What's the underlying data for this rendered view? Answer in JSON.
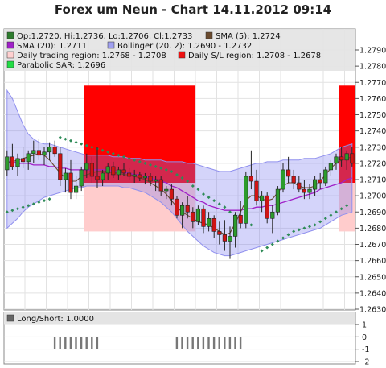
{
  "chart_data": {
    "type": "line",
    "title": "Forex um Neun - Chart 14.11.2012 09:14",
    "legend": {
      "ohlc": "Op:1.2720, Hi:1.2736, Lo:1.2706, Cl:1.2733",
      "sma5": "SMA (5): 1.2724",
      "sma20": "SMA (20): 1.2711",
      "bollinger": "Bollinger (20, 2): 1.2690 - 1.2732",
      "trading_region": "Daily trading region: 1.2768 - 1.2708",
      "sl_region": "Daily S/L region: 1.2708 - 1.2678",
      "sar": "Parabolic SAR: 1.2696"
    },
    "ylim": [
      1.263,
      1.279
    ],
    "yticks": [
      "1.2630",
      "1.2640",
      "1.2650",
      "1.2660",
      "1.2670",
      "1.2680",
      "1.2690",
      "1.2700",
      "1.2710",
      "1.2720",
      "1.2730",
      "1.2740",
      "1.2750",
      "1.2760",
      "1.2770",
      "1.2780",
      "1.2790"
    ],
    "candles": [
      [
        1.2716,
        1.2728,
        1.2712,
        1.2724
      ],
      [
        1.2724,
        1.2732,
        1.2716,
        1.2718
      ],
      [
        1.2718,
        1.2726,
        1.2712,
        1.2723
      ],
      [
        1.2723,
        1.273,
        1.2717,
        1.2721
      ],
      [
        1.2721,
        1.2728,
        1.2716,
        1.2726
      ],
      [
        1.2726,
        1.2734,
        1.272,
        1.2728
      ],
      [
        1.2728,
        1.2735,
        1.2722,
        1.2725
      ],
      [
        1.2725,
        1.273,
        1.2719,
        1.2727
      ],
      [
        1.2727,
        1.2733,
        1.2722,
        1.273
      ],
      [
        1.273,
        1.2734,
        1.2724,
        1.2726
      ],
      [
        1.2726,
        1.273,
        1.2706,
        1.271
      ],
      [
        1.271,
        1.2717,
        1.2702,
        1.2714
      ],
      [
        1.2714,
        1.2722,
        1.2698,
        1.2702
      ],
      [
        1.2702,
        1.2712,
        1.2698,
        1.2706
      ],
      [
        1.2706,
        1.2718,
        1.2703,
        1.2716
      ],
      [
        1.2716,
        1.2726,
        1.2711,
        1.272
      ],
      [
        1.272,
        1.2724,
        1.2708,
        1.2712
      ],
      [
        1.2712,
        1.273,
        1.2705,
        1.271
      ],
      [
        1.271,
        1.2716,
        1.2706,
        1.2714
      ],
      [
        1.2714,
        1.272,
        1.271,
        1.2718
      ],
      [
        1.2718,
        1.2721,
        1.2711,
        1.2713
      ],
      [
        1.2713,
        1.2718,
        1.271,
        1.2716
      ],
      [
        1.2716,
        1.272,
        1.2712,
        1.2714
      ],
      [
        1.2714,
        1.2717,
        1.271,
        1.2712
      ],
      [
        1.2712,
        1.2716,
        1.2708,
        1.2713
      ],
      [
        1.2713,
        1.2715,
        1.2709,
        1.2711
      ],
      [
        1.2711,
        1.2714,
        1.2707,
        1.2712
      ],
      [
        1.2712,
        1.2714,
        1.2706,
        1.2709
      ],
      [
        1.2709,
        1.2712,
        1.2703,
        1.271
      ],
      [
        1.271,
        1.2712,
        1.27,
        1.2703
      ],
      [
        1.2703,
        1.2706,
        1.2698,
        1.2704
      ],
      [
        1.2704,
        1.2707,
        1.2694,
        1.2698
      ],
      [
        1.2698,
        1.27,
        1.2686,
        1.2688
      ],
      [
        1.2688,
        1.2696,
        1.268,
        1.2694
      ],
      [
        1.2694,
        1.27,
        1.2686,
        1.269
      ],
      [
        1.269,
        1.2693,
        1.268,
        1.2684
      ],
      [
        1.2684,
        1.2694,
        1.2682,
        1.2692
      ],
      [
        1.2692,
        1.2694,
        1.2677,
        1.2681
      ],
      [
        1.2681,
        1.269,
        1.2678,
        1.2686
      ],
      [
        1.2686,
        1.2688,
        1.2674,
        1.2678
      ],
      [
        1.2678,
        1.2684,
        1.267,
        1.2676
      ],
      [
        1.2676,
        1.2685,
        1.2666,
        1.2672
      ],
      [
        1.2672,
        1.2681,
        1.2661,
        1.2675
      ],
      [
        1.2675,
        1.269,
        1.2668,
        1.2688
      ],
      [
        1.2688,
        1.2697,
        1.268,
        1.2683
      ],
      [
        1.2683,
        1.2715,
        1.268,
        1.2712
      ],
      [
        1.2712,
        1.2728,
        1.2704,
        1.2709
      ],
      [
        1.2709,
        1.2716,
        1.2694,
        1.2697
      ],
      [
        1.2697,
        1.2703,
        1.269,
        1.27
      ],
      [
        1.27,
        1.2702,
        1.2683,
        1.2686
      ],
      [
        1.2686,
        1.2694,
        1.2677,
        1.269
      ],
      [
        1.269,
        1.2706,
        1.2688,
        1.2704
      ],
      [
        1.2704,
        1.272,
        1.2702,
        1.2716
      ],
      [
        1.2716,
        1.2724,
        1.2708,
        1.2712
      ],
      [
        1.2712,
        1.2716,
        1.2704,
        1.2708
      ],
      [
        1.2708,
        1.2712,
        1.2702,
        1.2704
      ],
      [
        1.2704,
        1.271,
        1.2698,
        1.2702
      ],
      [
        1.2702,
        1.2707,
        1.2698,
        1.2704
      ],
      [
        1.2704,
        1.2712,
        1.27,
        1.271
      ],
      [
        1.271,
        1.2714,
        1.2704,
        1.2708
      ],
      [
        1.2708,
        1.2718,
        1.2706,
        1.2716
      ],
      [
        1.2716,
        1.2722,
        1.2712,
        1.272
      ],
      [
        1.272,
        1.2726,
        1.2716,
        1.2724
      ],
      [
        1.2724,
        1.273,
        1.2718,
        1.2722
      ],
      [
        1.2722,
        1.2728,
        1.2716,
        1.2726
      ],
      [
        1.2726,
        1.273,
        1.2718,
        1.272
      ],
      [
        1.272,
        1.2736,
        1.2706,
        1.2733
      ]
    ],
    "sma5": [
      1.272,
      1.2721,
      1.2722,
      1.2723,
      1.2724,
      1.2725,
      1.2726,
      1.2725,
      1.2722,
      1.2718,
      1.2714,
      1.2711,
      1.2709,
      1.2709,
      1.2712,
      1.2713,
      1.2714,
      1.2715,
      1.2715,
      1.2715,
      1.2714,
      1.2714,
      1.2713,
      1.2713,
      1.2712,
      1.2711,
      1.271,
      1.2708,
      1.2706,
      1.2704,
      1.2701,
      1.2697,
      1.2693,
      1.269,
      1.2688,
      1.2686,
      1.2684,
      1.2683,
      1.2682,
      1.268,
      1.2678,
      1.2676,
      1.2677,
      1.2683,
      1.269,
      1.2697,
      1.27,
      1.27,
      1.2698,
      1.2697,
      1.2698,
      1.2702,
      1.2706,
      1.2708,
      1.2708,
      1.2706,
      1.2705,
      1.2705,
      1.2706,
      1.2709,
      1.2713,
      1.2717,
      1.272,
      1.2722,
      1.2723,
      1.2724
    ],
    "sma20": [
      1.2721,
      1.2721,
      1.272,
      1.272,
      1.272,
      1.2719,
      1.2719,
      1.2719,
      1.2718,
      1.2718,
      1.2717,
      1.2717,
      1.2716,
      1.2716,
      1.2716,
      1.2716,
      1.2716,
      1.2716,
      1.2716,
      1.2716,
      1.2715,
      1.2715,
      1.2714,
      1.2714,
      1.2713,
      1.2713,
      1.2712,
      1.2711,
      1.271,
      1.2709,
      1.2708,
      1.2706,
      1.2705,
      1.2703,
      1.2701,
      1.2699,
      1.2697,
      1.2696,
      1.2694,
      1.2693,
      1.2692,
      1.2691,
      1.2691,
      1.2691,
      1.2691,
      1.2692,
      1.2692,
      1.2693,
      1.2693,
      1.2694,
      1.2694,
      1.2695,
      1.2696,
      1.2697,
      1.2698,
      1.2699,
      1.27,
      1.2701,
      1.2702,
      1.2704,
      1.2705,
      1.2706,
      1.2707,
      1.2708,
      1.271,
      1.2711
    ],
    "bb_upper": [
      1.2765,
      1.276,
      1.2752,
      1.2744,
      1.2738,
      1.2735,
      1.2733,
      1.2732,
      1.2732,
      1.2731,
      1.273,
      1.2729,
      1.2728,
      1.2727,
      1.2726,
      1.2725,
      1.2725,
      1.2725,
      1.2725,
      1.2725,
      1.2724,
      1.2724,
      1.2724,
      1.2723,
      1.2723,
      1.2723,
      1.2722,
      1.2722,
      1.2722,
      1.2722,
      1.2721,
      1.2721,
      1.2721,
      1.2721,
      1.272,
      1.272,
      1.2719,
      1.2718,
      1.2717,
      1.2716,
      1.2715,
      1.2715,
      1.2715,
      1.2716,
      1.2717,
      1.2718,
      1.2719,
      1.272,
      1.272,
      1.2721,
      1.2721,
      1.2721,
      1.2722,
      1.2722,
      1.2722,
      1.2722,
      1.2723,
      1.2723,
      1.2723,
      1.2724,
      1.2725,
      1.2726,
      1.2728,
      1.273,
      1.2731,
      1.2732
    ],
    "bb_lower": [
      1.268,
      1.2683,
      1.2686,
      1.269,
      1.2693,
      1.2695,
      1.2697,
      1.2699,
      1.27,
      1.2701,
      1.2702,
      1.2703,
      1.2704,
      1.2705,
      1.2705,
      1.2706,
      1.2706,
      1.2706,
      1.2706,
      1.2706,
      1.2706,
      1.2706,
      1.2705,
      1.2705,
      1.2704,
      1.2703,
      1.2702,
      1.27,
      1.2698,
      1.2696,
      1.2693,
      1.269,
      1.2686,
      1.2682,
      1.2678,
      1.2675,
      1.2672,
      1.2669,
      1.2667,
      1.2665,
      1.2664,
      1.2663,
      1.2663,
      1.2664,
      1.2665,
      1.2666,
      1.2667,
      1.2668,
      1.2669,
      1.267,
      1.2671,
      1.2672,
      1.2673,
      1.2674,
      1.2675,
      1.2676,
      1.2677,
      1.2678,
      1.2679,
      1.268,
      1.2682,
      1.2684,
      1.2686,
      1.2688,
      1.2689,
      1.269
    ],
    "sar_points": [
      [
        0,
        1.269
      ],
      [
        1,
        1.2691
      ],
      [
        2,
        1.2692
      ],
      [
        3,
        1.2693
      ],
      [
        4,
        1.2694
      ],
      [
        5,
        1.2695
      ],
      [
        6,
        1.2696
      ],
      [
        7,
        1.2697
      ],
      [
        8,
        1.2698
      ],
      [
        10,
        1.2736
      ],
      [
        11,
        1.2735
      ],
      [
        12,
        1.2734
      ],
      [
        13,
        1.2733
      ],
      [
        14,
        1.2732
      ],
      [
        15,
        1.2731
      ],
      [
        16,
        1.273
      ],
      [
        17,
        1.2729
      ],
      [
        18,
        1.2728
      ],
      [
        19,
        1.2727
      ],
      [
        20,
        1.2726
      ],
      [
        21,
        1.2725
      ],
      [
        22,
        1.2724
      ],
      [
        23,
        1.2723
      ],
      [
        24,
        1.2722
      ],
      [
        25,
        1.2721
      ],
      [
        26,
        1.272
      ],
      [
        27,
        1.2719
      ],
      [
        28,
        1.2718
      ],
      [
        29,
        1.2717
      ],
      [
        30,
        1.2716
      ],
      [
        31,
        1.2715
      ],
      [
        32,
        1.2713
      ],
      [
        33,
        1.2711
      ],
      [
        34,
        1.2709
      ],
      [
        35,
        1.2706
      ],
      [
        36,
        1.2704
      ],
      [
        37,
        1.2701
      ],
      [
        38,
        1.2699
      ],
      [
        39,
        1.2697
      ],
      [
        40,
        1.2695
      ],
      [
        41,
        1.2693
      ],
      [
        42,
        1.269
      ],
      [
        43,
        1.2688
      ],
      [
        44,
        1.2686
      ],
      [
        45,
        1.2684
      ],
      [
        46,
        1.2682
      ],
      [
        48,
        1.2666
      ],
      [
        49,
        1.2668
      ],
      [
        50,
        1.267
      ],
      [
        51,
        1.2672
      ],
      [
        52,
        1.2674
      ],
      [
        53,
        1.2676
      ],
      [
        54,
        1.2678
      ],
      [
        55,
        1.2679
      ],
      [
        56,
        1.268
      ],
      [
        57,
        1.2681
      ],
      [
        58,
        1.2682
      ],
      [
        59,
        1.2684
      ],
      [
        60,
        1.2686
      ],
      [
        61,
        1.2688
      ],
      [
        62,
        1.269
      ],
      [
        63,
        1.2692
      ],
      [
        64,
        1.2694
      ]
    ],
    "regions": [
      {
        "start": 15,
        "end": 36,
        "trading": [
          1.2708,
          1.2768
        ],
        "sl": [
          1.2678,
          1.2708
        ]
      },
      {
        "start": 63,
        "end": 81,
        "trading": [
          1.2708,
          1.2768
        ],
        "sl": [
          1.2678,
          1.2708
        ]
      }
    ],
    "sub_panel": {
      "legend": "Long/Short: 1.0000",
      "yticks": [
        "1",
        "0",
        "-1",
        "-2"
      ],
      "ylim": [
        -2,
        1
      ],
      "short_bar_ranges": [
        [
          18,
          34
        ],
        [
          64,
          88
        ]
      ]
    },
    "grid": true
  }
}
